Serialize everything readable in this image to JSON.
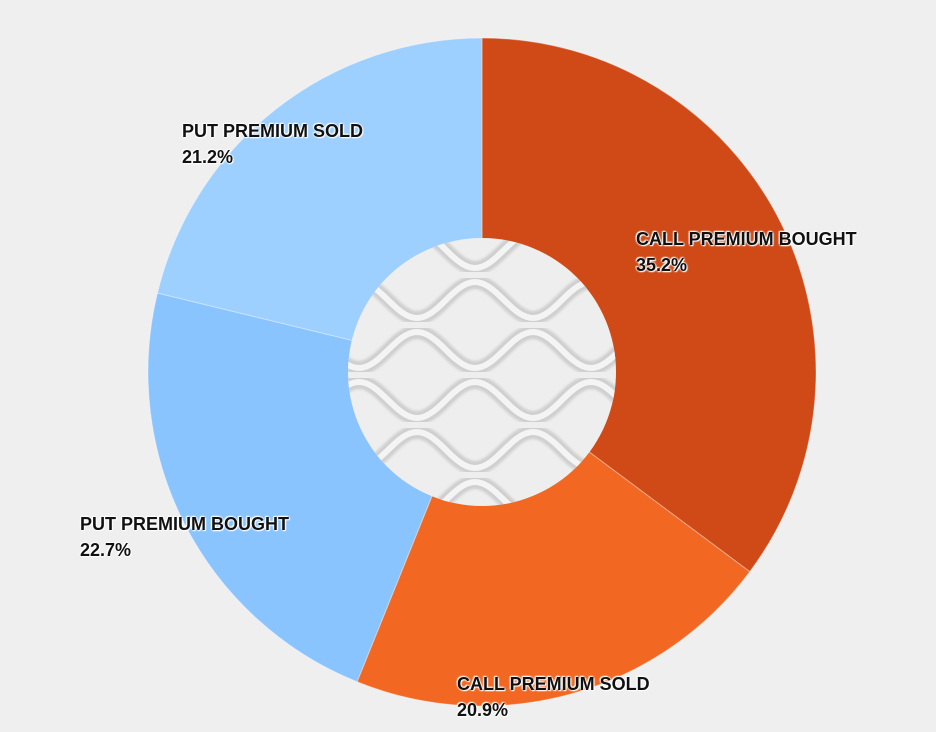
{
  "chart_data": {
    "type": "pie",
    "donut": true,
    "start_angle_deg": 0,
    "direction": "clockwise",
    "slices": [
      {
        "name": "CALL PREMIUM BOUGHT",
        "value": 35.2,
        "value_label": "35.2%",
        "color": "#d04a18"
      },
      {
        "name": "CALL PREMIUM SOLD",
        "value": 20.9,
        "value_label": "20.9%",
        "color": "#f26722"
      },
      {
        "name": "PUT PREMIUM BOUGHT",
        "value": 22.7,
        "value_label": "22.7%",
        "color": "#8ac4ff"
      },
      {
        "name": "PUT PREMIUM SOLD",
        "value": 21.2,
        "value_label": "21.2%",
        "color": "#9dcfff"
      }
    ]
  },
  "center_decoration": {
    "icon": "wave-pattern-icon"
  }
}
